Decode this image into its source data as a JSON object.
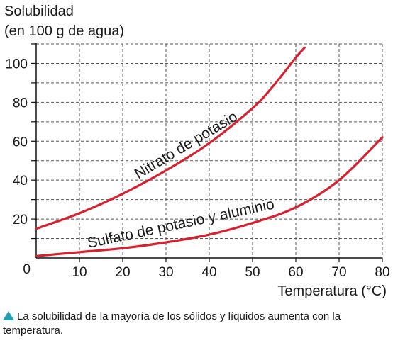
{
  "chart_data": {
    "type": "line",
    "ytitle_line1": "Solubilidad",
    "ytitle_line2": "(en 100 g de agua)",
    "xlabel": "Temperatura (°C)",
    "xlim": [
      0,
      80
    ],
    "ylim": [
      0,
      110
    ],
    "xticks": [
      0,
      10,
      20,
      30,
      40,
      50,
      60,
      70,
      80
    ],
    "yticks": [
      20,
      40,
      60,
      80,
      100
    ],
    "origin_label": "0",
    "grid": true,
    "series": [
      {
        "name": "Nitrato de potasio",
        "color": "#d8202f",
        "x": [
          0,
          10,
          20,
          30,
          40,
          50,
          55,
          60,
          62
        ],
        "y": [
          15,
          23,
          33,
          45,
          59,
          77,
          89,
          103,
          108
        ]
      },
      {
        "name": "Sulfato de potasio y aluminio",
        "color": "#d8202f",
        "x": [
          0,
          10,
          20,
          30,
          40,
          50,
          60,
          70,
          80
        ],
        "y": [
          1,
          3,
          5,
          8,
          12,
          18,
          26,
          40,
          62
        ]
      }
    ]
  },
  "caption": "La solubilidad de la mayoría de los sólidos y líquidos aumenta con la temperatura."
}
